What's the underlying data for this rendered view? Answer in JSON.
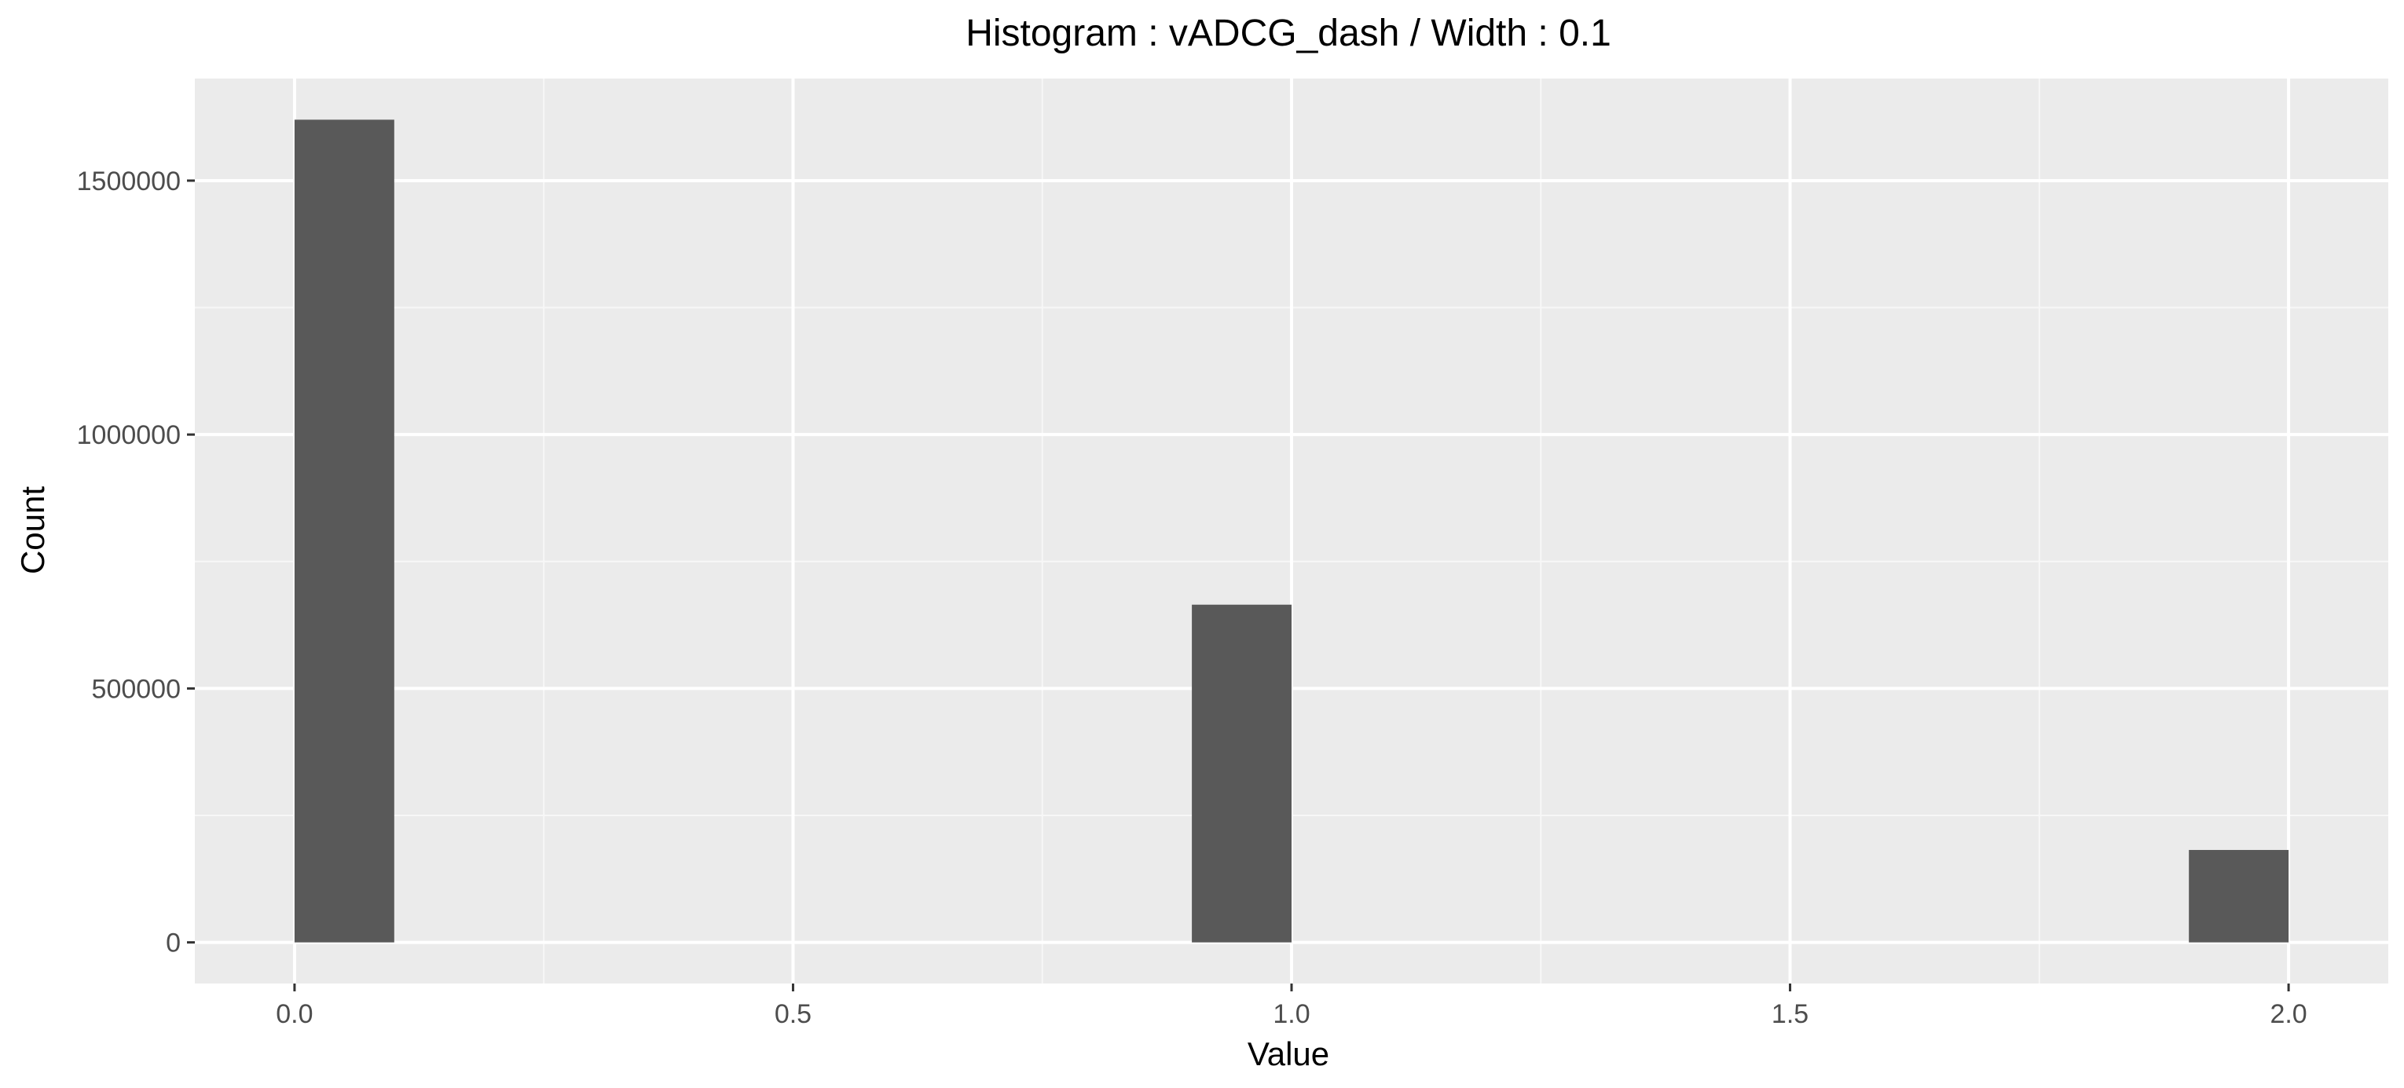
{
  "chart_data": {
    "type": "bar",
    "title": "Histogram : vADCG_dash / Width : 0.1",
    "xlabel": "Value",
    "ylabel": "Count",
    "bin_width": 0.1,
    "bins": [
      {
        "x_start": 0.0,
        "x_end": 0.1,
        "count": 1620000
      },
      {
        "x_start": 0.9,
        "x_end": 1.0,
        "count": 665000
      },
      {
        "x_start": 1.9,
        "x_end": 2.0,
        "count": 182000
      }
    ],
    "xlim": [
      -0.1,
      2.1
    ],
    "ylim": [
      -81000,
      1701000
    ],
    "x_ticks": [
      0.0,
      0.5,
      1.0,
      1.5,
      2.0
    ],
    "x_tick_labels": [
      "0.0",
      "0.5",
      "1.0",
      "1.5",
      "2.0"
    ],
    "y_ticks": [
      0,
      500000,
      1000000,
      1500000
    ],
    "y_tick_labels": [
      "0",
      "500000",
      "1000000",
      "1500000"
    ],
    "grid": true,
    "legend": "none",
    "colors": {
      "panel_background": "#ebebeb",
      "grid_major": "#ffffff",
      "grid_minor": "#f7f7f7",
      "bar_fill": "#595959",
      "axis_text": "#4d4d4d",
      "title_text": "#000000"
    }
  }
}
